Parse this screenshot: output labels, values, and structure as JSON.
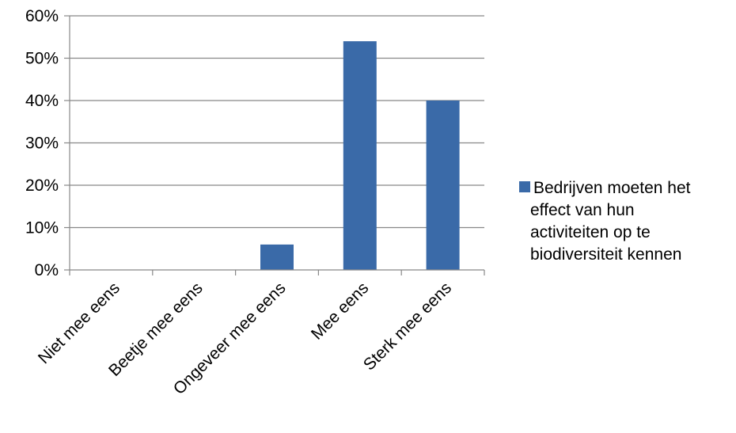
{
  "chart_data": {
    "type": "bar",
    "categories": [
      "Niet mee eens",
      "Beetje mee eens",
      "Ongeveer mee eens",
      "Mee eens",
      "Sterk mee eens"
    ],
    "series": [
      {
        "name": "Bedrijven moeten het effect van hun activiteiten op te biodiversiteit kennen",
        "name_lines": [
          "Bedrijven moeten het",
          "effect van hun",
          "activiteiten op te",
          "biodiversiteit kennen"
        ],
        "color": "#3a6aa8",
        "values": [
          0,
          0,
          6,
          54,
          40
        ]
      }
    ],
    "y_ticks": [
      "0%",
      "10%",
      "20%",
      "30%",
      "40%",
      "50%",
      "60%"
    ],
    "ylim": [
      0,
      60
    ],
    "ystep": 10,
    "grid": true,
    "legend_position": "right"
  }
}
